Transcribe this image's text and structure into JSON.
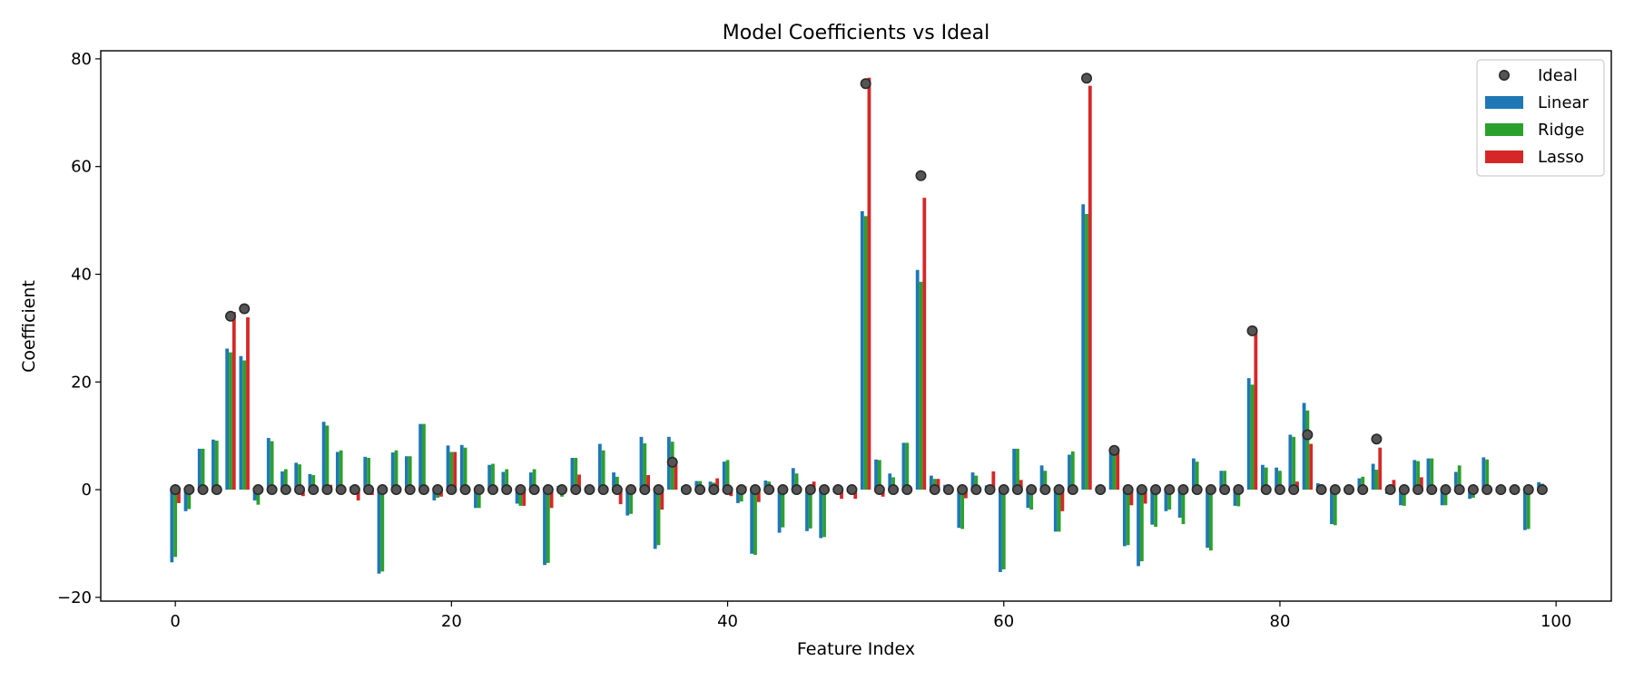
{
  "chart_data": {
    "type": "bar",
    "title": "Model Coefficients vs Ideal",
    "xlabel": "Feature Index",
    "ylabel": "Coefficient",
    "xlim": [
      -5.4,
      104
    ],
    "ylim": [
      -20.7,
      81.5
    ],
    "xticks": [
      0,
      20,
      40,
      60,
      80,
      100
    ],
    "yticks": [
      -20,
      0,
      20,
      40,
      60,
      80
    ],
    "grid": false,
    "legend_position": "top-right",
    "colors": {
      "Linear": "#1f77b4",
      "Ridge": "#2ca02c",
      "Lasso": "#d62728",
      "Ideal": "#555555"
    },
    "x": [
      0,
      1,
      2,
      3,
      4,
      5,
      6,
      7,
      8,
      9,
      10,
      11,
      12,
      13,
      14,
      15,
      16,
      17,
      18,
      19,
      20,
      21,
      22,
      23,
      24,
      25,
      26,
      27,
      28,
      29,
      30,
      31,
      32,
      33,
      34,
      35,
      36,
      37,
      38,
      39,
      40,
      41,
      42,
      43,
      44,
      45,
      46,
      47,
      48,
      49,
      50,
      51,
      52,
      53,
      54,
      55,
      56,
      57,
      58,
      59,
      60,
      61,
      62,
      63,
      64,
      65,
      66,
      67,
      68,
      69,
      70,
      71,
      72,
      73,
      74,
      75,
      76,
      77,
      78,
      79,
      80,
      81,
      82,
      83,
      84,
      85,
      86,
      87,
      88,
      89,
      90,
      91,
      92,
      93,
      94,
      95,
      96,
      97,
      98,
      99
    ],
    "series": [
      {
        "name": "Ideal",
        "kind": "scatter",
        "values": [
          0,
          0,
          0,
          0,
          32.2,
          33.6,
          0,
          0,
          0,
          0,
          0,
          0,
          0,
          0,
          0,
          0,
          0,
          0,
          0,
          0,
          0,
          0,
          0,
          0,
          0,
          0,
          0,
          0,
          0,
          0,
          0,
          0,
          0,
          0,
          0,
          0,
          5.1,
          0,
          0,
          0,
          0,
          0,
          0,
          0,
          0,
          0,
          0,
          0,
          0,
          0,
          75.4,
          0,
          0,
          0,
          58.3,
          0,
          0,
          0,
          0,
          0,
          0,
          0,
          0,
          0,
          0,
          0,
          76.4,
          0,
          7.3,
          0,
          0,
          0,
          0,
          0,
          0,
          0,
          0,
          0,
          29.5,
          0,
          0,
          0,
          10.2,
          0,
          0,
          0,
          0,
          9.4,
          0,
          0,
          0,
          0,
          0,
          0,
          0,
          0,
          0,
          0,
          0,
          0
        ]
      },
      {
        "name": "Linear",
        "kind": "bar",
        "values": [
          -13.5,
          -4,
          7.6,
          9.3,
          26.2,
          24.8,
          -2,
          9.6,
          3.4,
          5,
          2.9,
          12.6,
          7,
          0.6,
          6.1,
          -15.6,
          6.9,
          6.2,
          12.2,
          -2,
          8.2,
          8.3,
          -3.4,
          4.6,
          3.3,
          -2.6,
          3.2,
          -14,
          0.7,
          5.9,
          -0.3,
          8.5,
          3.2,
          -4.8,
          9.8,
          -11,
          9.8,
          0.6,
          1.6,
          1.5,
          5.2,
          -2.5,
          -11.9,
          1.7,
          -8,
          4,
          -7.7,
          -9,
          -0.5,
          -0.4,
          51.7,
          5.6,
          3,
          8.7,
          40.8,
          2.6,
          0.9,
          -7.1,
          3.2,
          0.8,
          -15.3,
          7.6,
          -3.4,
          4.5,
          -7.8,
          6.5,
          53,
          0.2,
          7,
          -10.5,
          -14.2,
          -6.5,
          -4,
          -5.2,
          5.8,
          -10.8,
          3.5,
          -3,
          20.7,
          4.6,
          4.1,
          10.2,
          16.1,
          1.2,
          -6.4,
          0.3,
          2.1,
          4.8,
          -0.8,
          -2.9,
          5.5,
          5.8,
          -2.9,
          3.3,
          -1.7,
          6,
          -0.5,
          0.2,
          -7.5,
          1.4
        ]
      },
      {
        "name": "Ridge",
        "kind": "bar",
        "values": [
          -12.5,
          -3.6,
          7.6,
          9.1,
          25.5,
          24,
          -2.8,
          9,
          3.8,
          4.7,
          2.7,
          11.9,
          7.3,
          0.5,
          5.9,
          -15.2,
          7.3,
          6.2,
          12.2,
          -1.5,
          7,
          7.8,
          -3.4,
          4.8,
          3.8,
          -3,
          3.8,
          -13.6,
          -1.3,
          5.9,
          -0.3,
          7.3,
          2.4,
          -4.5,
          8.6,
          -10.3,
          8.9,
          0.5,
          1.6,
          1.3,
          5.5,
          -2.2,
          -12.1,
          1.5,
          -7,
          3,
          -7.2,
          -8.8,
          -0.5,
          -0.4,
          50.8,
          5.5,
          2.3,
          8.7,
          38.6,
          2,
          0.9,
          -7.3,
          2.6,
          0.8,
          -14.8,
          7.6,
          -3.7,
          3.5,
          -7.8,
          7.1,
          51.2,
          0.2,
          6.7,
          -10.3,
          -13.3,
          -6.9,
          -3.7,
          -6.4,
          5.2,
          -11.3,
          3.5,
          -3.1,
          19.5,
          4.1,
          3.5,
          9.8,
          14.7,
          1,
          -6.6,
          0.3,
          2.4,
          3.7,
          -0.8,
          -3,
          5.3,
          5.8,
          -2.9,
          4.5,
          -1.5,
          5.6,
          -0.4,
          0.2,
          -7.3,
          1.1
        ]
      },
      {
        "name": "Lasso",
        "kind": "bar",
        "values": [
          -2.5,
          -0.4,
          0,
          0,
          33,
          32,
          0.3,
          0,
          0,
          -1.2,
          0,
          0.9,
          0,
          -2,
          -1,
          0,
          0,
          0,
          0,
          -1.3,
          7,
          0,
          0,
          0,
          0,
          -3,
          0,
          -3.4,
          0,
          2.8,
          0,
          0,
          -2.7,
          0,
          2.7,
          -3.7,
          4.6,
          0,
          0,
          2.1,
          -1.2,
          0.6,
          -2.3,
          0,
          0,
          0,
          1.5,
          0,
          -1.7,
          -1.7,
          76.5,
          -1.3,
          0,
          0,
          54.2,
          2,
          0,
          -1.6,
          0,
          3.4,
          0,
          1.8,
          0,
          0,
          -4,
          0,
          75,
          0,
          7.4,
          -2.9,
          -2.6,
          0,
          0,
          0,
          0,
          0,
          0,
          0,
          29.7,
          0,
          0,
          1.5,
          8.5,
          0,
          0,
          0,
          0,
          7.8,
          1.8,
          0,
          2.3,
          0,
          0,
          0,
          0,
          0,
          0,
          0,
          0,
          0
        ]
      }
    ]
  }
}
